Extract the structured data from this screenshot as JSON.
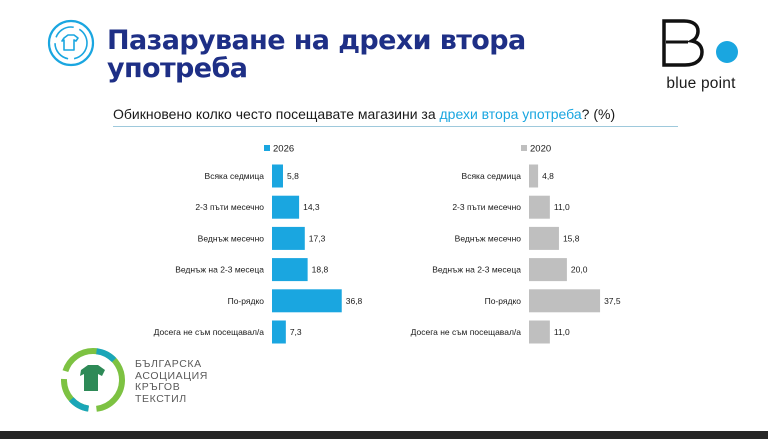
{
  "header": {
    "icon": "recycle-clothing-icon",
    "title_line1": "Пазаруване на дрехи втора",
    "title_line2": "употреба"
  },
  "brand": {
    "name": "blue point",
    "mark": "B-with-blue-dot-logo"
  },
  "question": {
    "prefix": "Обикновено колко често посещавате магазини за ",
    "highlight": "дрехи втора употреба",
    "suffix": "? (%)"
  },
  "colors": {
    "accent": "#1aa6e0",
    "title": "#1e2f86",
    "grey_bar": "#bfbfbf",
    "text": "#1a1a1a"
  },
  "chart_data": [
    {
      "type": "bar",
      "orientation": "horizontal",
      "legend": "2026",
      "color": "#1aa6e0",
      "categories": [
        "Всяка седмица",
        "2-3 пъти месечно",
        "Веднъж месечно",
        "Веднъж на 2-3 месеца",
        "По-рядко",
        "Досега не съм посещавал/а"
      ],
      "values": [
        5.8,
        14.3,
        17.3,
        18.8,
        36.8,
        7.3
      ],
      "labels": [
        "5,8",
        "14,3",
        "17,3",
        "18,8",
        "36,8",
        "7,3"
      ]
    },
    {
      "type": "bar",
      "orientation": "horizontal",
      "legend": "2020",
      "color": "#bfbfbf",
      "categories": [
        "Всяка седмица",
        "2-3 пъти месечно",
        "Веднъж месечно",
        "Веднъж на 2-3 месеца",
        "По-рядко",
        "Досега не съм посещавал/а"
      ],
      "values": [
        4.8,
        11.0,
        15.8,
        20.0,
        37.5,
        11.0
      ],
      "labels": [
        "4,8",
        "11,0",
        "15,8",
        "20,0",
        "37,5",
        "11,0"
      ]
    }
  ],
  "org": {
    "lines": [
      "БЪЛГАРСКА",
      "АСОЦИАЦИЯ",
      "КРЪГОВ",
      "ТЕКСТИЛ"
    ],
    "mark": "circular-textile-tshirt-logo"
  }
}
